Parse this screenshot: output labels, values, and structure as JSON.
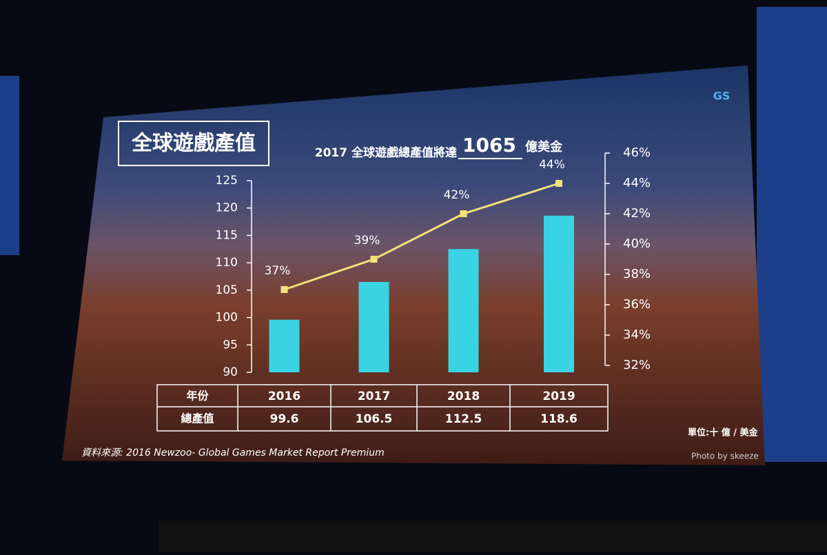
{
  "chart_data": {
    "type": "bar",
    "title": "全球遊戲產值",
    "subtitle": "2017 全球遊戲總產值將達",
    "highlight": "1065",
    "subtitle_unit": "億美金",
    "x_label": "年份",
    "categories": [
      "2016",
      "2017",
      "2018",
      "2019"
    ],
    "series": [
      {
        "name": "總產值",
        "color": "#3ad3e3",
        "values": [
          99.6,
          106.5,
          112.5,
          118.6
        ]
      },
      {
        "color": "#f2e27a",
        "axis": "y2",
        "values": [
          37,
          39,
          42,
          44
        ],
        "value_labels": [
          "37%",
          "39%",
          "42%",
          "44%"
        ]
      }
    ],
    "ylim": [
      90,
      125
    ],
    "yticks": [
      90,
      95,
      100,
      105,
      110,
      115,
      120,
      125
    ],
    "y2lim": [
      32,
      46
    ],
    "y2ticks": [
      {
        "value": 32,
        "label": "32%"
      },
      {
        "value": 34,
        "label": "34%"
      },
      {
        "value": 36,
        "label": "36%"
      },
      {
        "value": 38,
        "label": "38%"
      },
      {
        "value": 40,
        "label": "40%"
      },
      {
        "value": 42,
        "label": "42%"
      },
      {
        "value": 44,
        "label": "44%"
      },
      {
        "value": 46,
        "label": "46%"
      }
    ],
    "unit_note": "單位:十 億 / 美金",
    "source": "資料來源: 2016 Newzoo- Global Games Market Report Premium",
    "credit": "Photo by skeeze",
    "logo": "GS"
  }
}
